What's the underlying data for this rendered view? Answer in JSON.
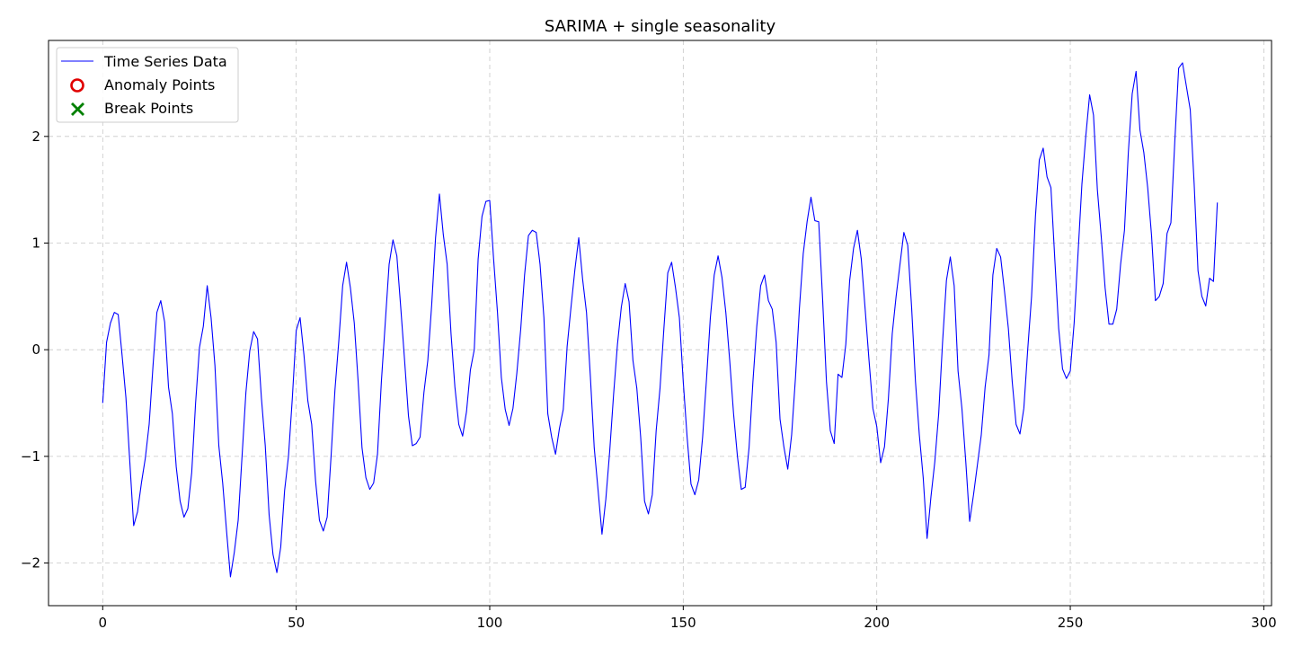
{
  "chart_data": {
    "type": "line",
    "title": "SARIMA + single seasonality",
    "xlabel": "",
    "ylabel": "",
    "xlim": [
      -14,
      302
    ],
    "ylim": [
      -2.4,
      2.9
    ],
    "x_ticks": [
      0,
      50,
      100,
      150,
      200,
      250,
      300
    ],
    "y_ticks": [
      -2,
      -1,
      0,
      1,
      2
    ],
    "grid": true,
    "legend_position": "top-left",
    "legend": [
      "Time Series Data",
      "Anomaly Points",
      "Break Points"
    ],
    "series": [
      {
        "name": "Time Series Data",
        "color": "#0000ff",
        "x_start": 0,
        "x_step": 1,
        "values": [
          -0.5,
          0.07,
          0.25,
          0.35,
          0.33,
          -0.05,
          -0.45,
          -1.05,
          -1.65,
          -1.52,
          -1.25,
          -1.02,
          -0.7,
          -0.15,
          0.35,
          0.46,
          0.26,
          -0.35,
          -0.6,
          -1.1,
          -1.42,
          -1.57,
          -1.49,
          -1.15,
          -0.5,
          0.02,
          0.22,
          0.6,
          0.3,
          -0.15,
          -0.9,
          -1.25,
          -1.7,
          -2.13,
          -1.9,
          -1.6,
          -1.0,
          -0.4,
          -0.01,
          0.17,
          0.1,
          -0.45,
          -0.9,
          -1.55,
          -1.92,
          -2.09,
          -1.85,
          -1.32,
          -1.0,
          -0.45,
          0.18,
          0.3,
          -0.05,
          -0.48,
          -0.7,
          -1.23,
          -1.6,
          -1.7,
          -1.57,
          -1.0,
          -0.38,
          0.08,
          0.6,
          0.82,
          0.58,
          0.25,
          -0.3,
          -0.92,
          -1.2,
          -1.31,
          -1.25,
          -0.98,
          -0.3,
          0.25,
          0.8,
          1.03,
          0.88,
          0.4,
          -0.1,
          -0.62,
          -0.9,
          -0.88,
          -0.82,
          -0.4,
          -0.1,
          0.42,
          1.05,
          1.46,
          1.08,
          0.8,
          0.15,
          -0.35,
          -0.7,
          -0.81,
          -0.58,
          -0.19,
          0.0,
          0.85,
          1.25,
          1.39,
          1.4,
          0.85,
          0.35,
          -0.26,
          -0.56,
          -0.71,
          -0.55,
          -0.22,
          0.19,
          0.7,
          1.07,
          1.12,
          1.1,
          0.8,
          0.3,
          -0.6,
          -0.82,
          -0.98,
          -0.74,
          -0.56,
          0.03,
          0.4,
          0.75,
          1.05,
          0.66,
          0.35,
          -0.25,
          -0.92,
          -1.32,
          -1.73,
          -1.4,
          -0.95,
          -0.42,
          0.05,
          0.4,
          0.62,
          0.45,
          -0.1,
          -0.36,
          -0.82,
          -1.42,
          -1.54,
          -1.36,
          -0.76,
          -0.36,
          0.2,
          0.72,
          0.82,
          0.58,
          0.3,
          -0.3,
          -0.82,
          -1.26,
          -1.36,
          -1.22,
          -0.82,
          -0.28,
          0.3,
          0.7,
          0.88,
          0.68,
          0.35,
          -0.1,
          -0.6,
          -1.0,
          -1.31,
          -1.29,
          -0.92,
          -0.3,
          0.22,
          0.6,
          0.7,
          0.46,
          0.38,
          0.07,
          -0.65,
          -0.91,
          -1.12,
          -0.8,
          -0.26,
          0.38,
          0.9,
          1.2,
          1.43,
          1.21,
          1.2,
          0.48,
          -0.3,
          -0.76,
          -0.88,
          -0.23,
          -0.26,
          0.05,
          0.65,
          0.95,
          1.12,
          0.85,
          0.38,
          -0.1,
          -0.55,
          -0.72,
          -1.06,
          -0.91,
          -0.46,
          0.15,
          0.5,
          0.8,
          1.1,
          0.98,
          0.4,
          -0.3,
          -0.8,
          -1.2,
          -1.77,
          -1.38,
          -1.05,
          -0.6,
          0.07,
          0.65,
          0.87,
          0.6,
          -0.2,
          -0.55,
          -1.05,
          -1.61,
          -1.36,
          -1.08,
          -0.8,
          -0.35,
          -0.05,
          0.7,
          0.95,
          0.87,
          0.55,
          0.2,
          -0.3,
          -0.7,
          -0.79,
          -0.55,
          0.0,
          0.5,
          1.25,
          1.78,
          1.89,
          1.62,
          1.52,
          0.85,
          0.2,
          -0.18,
          -0.27,
          -0.2,
          0.25,
          0.9,
          1.55,
          2.0,
          2.39,
          2.2,
          1.5,
          1.06,
          0.58,
          0.24,
          0.24,
          0.38,
          0.8,
          1.12,
          1.85,
          2.4,
          2.61,
          2.06,
          1.85,
          1.52,
          1.07,
          0.46,
          0.5,
          0.62,
          1.09,
          1.19,
          1.95,
          2.64,
          2.69,
          2.47,
          2.25,
          1.56,
          0.74,
          0.5,
          0.41,
          0.67,
          0.64,
          1.38
        ]
      }
    ],
    "anomaly_points": [],
    "break_points": []
  },
  "colors": {
    "line": "#0000ff",
    "anomaly": "#e00000",
    "break": "#008000",
    "axes": "#000000",
    "grid": "#b0b0b0"
  }
}
